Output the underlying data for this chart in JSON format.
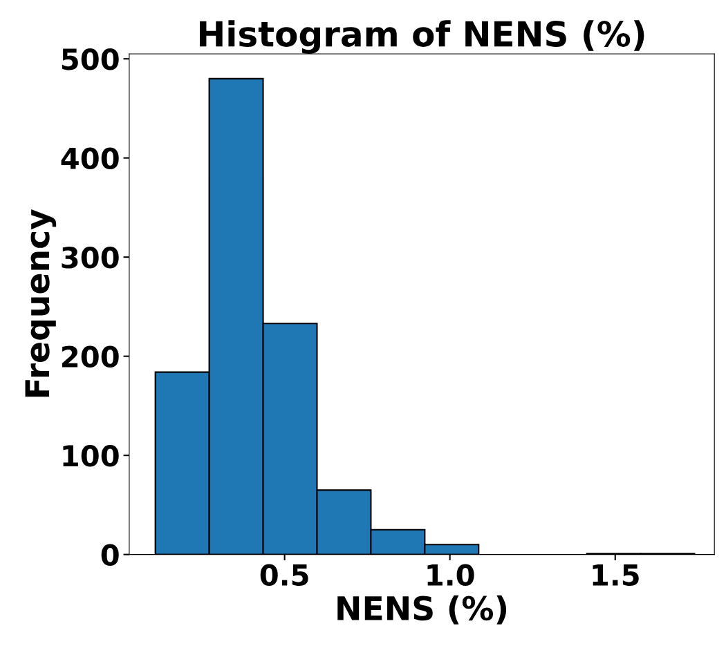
{
  "chart_data": {
    "type": "histogram",
    "title": "Histogram of NENS (%)",
    "xlabel": "NENS (%)",
    "ylabel": "Frequency",
    "bins": [
      0.109,
      0.272,
      0.435,
      0.598,
      0.761,
      0.924,
      1.087,
      1.25,
      1.414,
      1.577,
      1.74
    ],
    "values": [
      184,
      480,
      233,
      65,
      25,
      10,
      0,
      0,
      1,
      1
    ],
    "color": "#1f77b4",
    "xlim": [
      0.03,
      1.8
    ],
    "xticks": [
      0.5,
      {
        "value": 1.0,
        "label": "1.0"
      },
      1.5
    ],
    "ylim": [
      0,
      505
    ],
    "yticks": [
      0,
      100,
      200,
      300,
      400,
      500
    ],
    "grid": false
  }
}
